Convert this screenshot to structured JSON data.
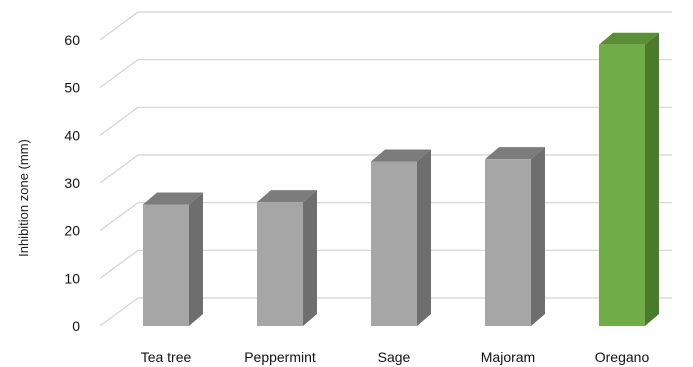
{
  "chart_data": {
    "type": "bar",
    "style": "3d-column",
    "categories": [
      "Tea tree",
      "Peppermint",
      "Sage",
      "Majoram",
      "Oregano"
    ],
    "values": [
      25.5,
      26,
      34.5,
      35,
      59
    ],
    "ylabel": "Inhibition zone (mm)",
    "xlabel": "",
    "ylim": [
      0,
      60
    ],
    "yticks": [
      0,
      10,
      20,
      30,
      40,
      50,
      60
    ],
    "grid": true,
    "legend": "none",
    "colors": {
      "default_front": "#a6a6a6",
      "default_side": "#6e6e6e",
      "default_top": "#7c7c7c",
      "highlight_front": "#70ad47",
      "highlight_side": "#4a7a2c",
      "highlight_top": "#5b8f36",
      "highlight_category": "Oregano"
    }
  }
}
